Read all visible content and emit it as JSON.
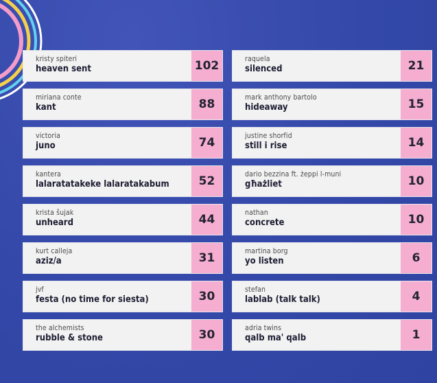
{
  "colors": {
    "background": "#3348a8",
    "row": "#f2f2f2",
    "score": "#f6aed0",
    "ring_pink": "#f39cc9",
    "ring_yellow": "#f4d14a",
    "ring_cyan": "#62d2ee",
    "ring_white": "#ffffff"
  },
  "left": [
    {
      "artist": "kristy spiteri",
      "song": "heaven sent",
      "score": "102"
    },
    {
      "artist": "miriana conte",
      "song": "kant",
      "score": "88"
    },
    {
      "artist": "victoria",
      "song": "juno",
      "score": "74"
    },
    {
      "artist": "kantera",
      "song": "lalaratatakeke lalaratakabum",
      "score": "52"
    },
    {
      "artist": "krista šujak",
      "song": "unheard",
      "score": "44"
    },
    {
      "artist": "kurt calleja",
      "song": "aziz/a",
      "score": "31"
    },
    {
      "artist": "jvf",
      "song": "festa (no time for siesta)",
      "score": "30"
    },
    {
      "artist": "the alchemists",
      "song": "rubble & stone",
      "score": "30"
    }
  ],
  "right": [
    {
      "artist": "raquela",
      "song": "silenced",
      "score": "21"
    },
    {
      "artist": "mark anthony bartolo",
      "song": "hideaway",
      "score": "15"
    },
    {
      "artist": "justine shorfid",
      "song": "still i rise",
      "score": "14"
    },
    {
      "artist": "dario bezzina ft. żeppi l-muni",
      "song": "għażliet",
      "score": "10"
    },
    {
      "artist": "nathan",
      "song": "concrete",
      "score": "10"
    },
    {
      "artist": "martina borg",
      "song": "yo listen",
      "score": "6"
    },
    {
      "artist": "stefan",
      "song": "lablab (talk talk)",
      "score": "4"
    },
    {
      "artist": "adria twins",
      "song": "qalb ma' qalb",
      "score": "1"
    }
  ]
}
